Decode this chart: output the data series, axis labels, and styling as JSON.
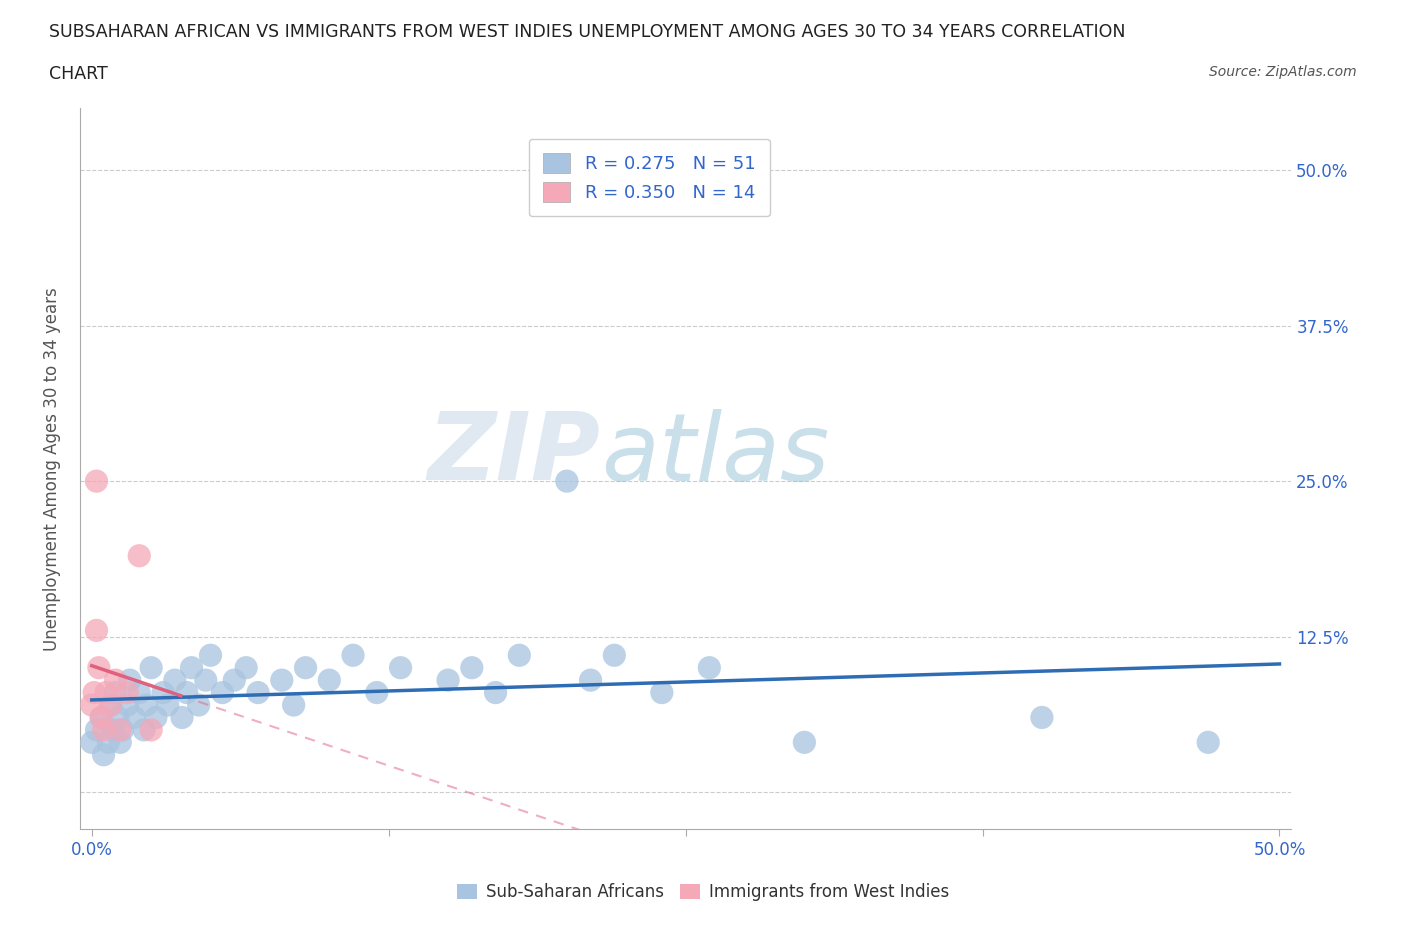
{
  "title_line1": "SUBSAHARAN AFRICAN VS IMMIGRANTS FROM WEST INDIES UNEMPLOYMENT AMONG AGES 30 TO 34 YEARS CORRELATION",
  "title_line2": "CHART",
  "source": "Source: ZipAtlas.com",
  "ylabel": "Unemployment Among Ages 30 to 34 years",
  "xlim": [
    -0.005,
    0.505
  ],
  "ylim": [
    -0.03,
    0.55
  ],
  "blue_R": 0.275,
  "blue_N": 51,
  "pink_R": 0.35,
  "pink_N": 14,
  "blue_color": "#a8c4e0",
  "pink_color": "#f4a8b8",
  "blue_line_color": "#2e6db4",
  "pink_line_color": "#e06080",
  "grid_color": "#cccccc",
  "watermark_zip": "ZIP",
  "watermark_atlas": "atlas",
  "blue_scatter_x": [
    0.0,
    0.002,
    0.004,
    0.005,
    0.007,
    0.008,
    0.009,
    0.01,
    0.011,
    0.012,
    0.013,
    0.015,
    0.016,
    0.018,
    0.02,
    0.022,
    0.023,
    0.025,
    0.027,
    0.03,
    0.032,
    0.035,
    0.038,
    0.04,
    0.042,
    0.045,
    0.048,
    0.05,
    0.055,
    0.06,
    0.065,
    0.07,
    0.08,
    0.085,
    0.09,
    0.1,
    0.11,
    0.12,
    0.13,
    0.15,
    0.16,
    0.17,
    0.18,
    0.2,
    0.21,
    0.22,
    0.24,
    0.26,
    0.3,
    0.4,
    0.47
  ],
  "blue_scatter_y": [
    0.04,
    0.05,
    0.06,
    0.03,
    0.04,
    0.07,
    0.05,
    0.08,
    0.06,
    0.04,
    0.05,
    0.07,
    0.09,
    0.06,
    0.08,
    0.05,
    0.07,
    0.1,
    0.06,
    0.08,
    0.07,
    0.09,
    0.06,
    0.08,
    0.1,
    0.07,
    0.09,
    0.11,
    0.08,
    0.09,
    0.1,
    0.08,
    0.09,
    0.07,
    0.1,
    0.09,
    0.11,
    0.08,
    0.1,
    0.09,
    0.1,
    0.08,
    0.11,
    0.25,
    0.09,
    0.11,
    0.08,
    0.1,
    0.04,
    0.06,
    0.04
  ],
  "pink_scatter_x": [
    0.0,
    0.001,
    0.002,
    0.003,
    0.004,
    0.005,
    0.006,
    0.008,
    0.01,
    0.012,
    0.015,
    0.02,
    0.025,
    0.002
  ],
  "pink_scatter_y": [
    0.07,
    0.08,
    0.13,
    0.1,
    0.06,
    0.05,
    0.08,
    0.07,
    0.09,
    0.05,
    0.08,
    0.19,
    0.05,
    0.25
  ]
}
